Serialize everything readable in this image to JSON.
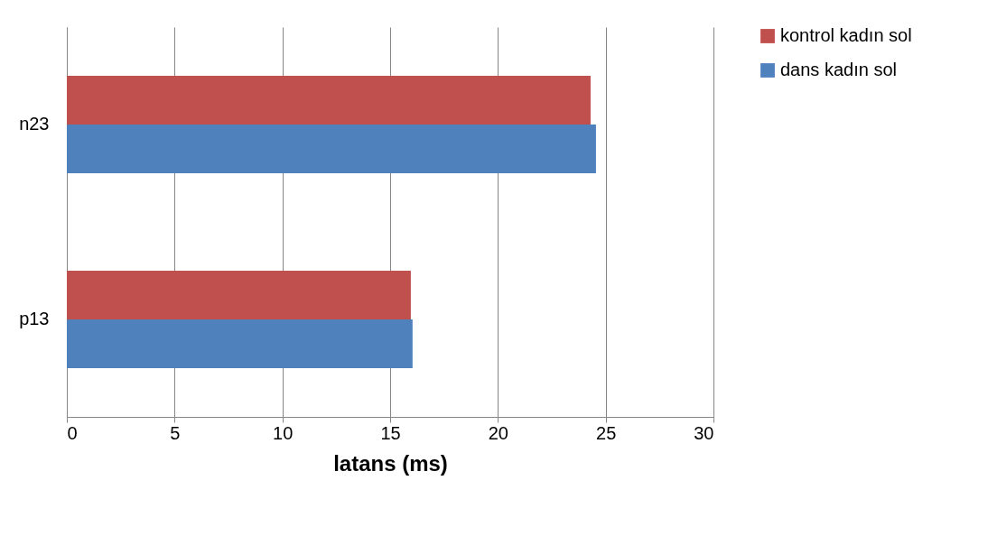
{
  "chart_data": {
    "type": "bar",
    "orientation": "horizontal",
    "xlabel": "latans (ms)",
    "categories": [
      "n23",
      "p13"
    ],
    "series": [
      {
        "name": "kontrol kadın sol",
        "color": "#c0504d",
        "values": [
          24.3,
          15.96
        ]
      },
      {
        "name": "dans kadın sol",
        "color": "#4f81bd",
        "values": [
          24.55,
          16.04
        ]
      }
    ],
    "xlim": [
      0,
      30
    ],
    "xticks": [
      0,
      5,
      10,
      15,
      20,
      25,
      30
    ],
    "grid": "x",
    "legend": "right"
  }
}
